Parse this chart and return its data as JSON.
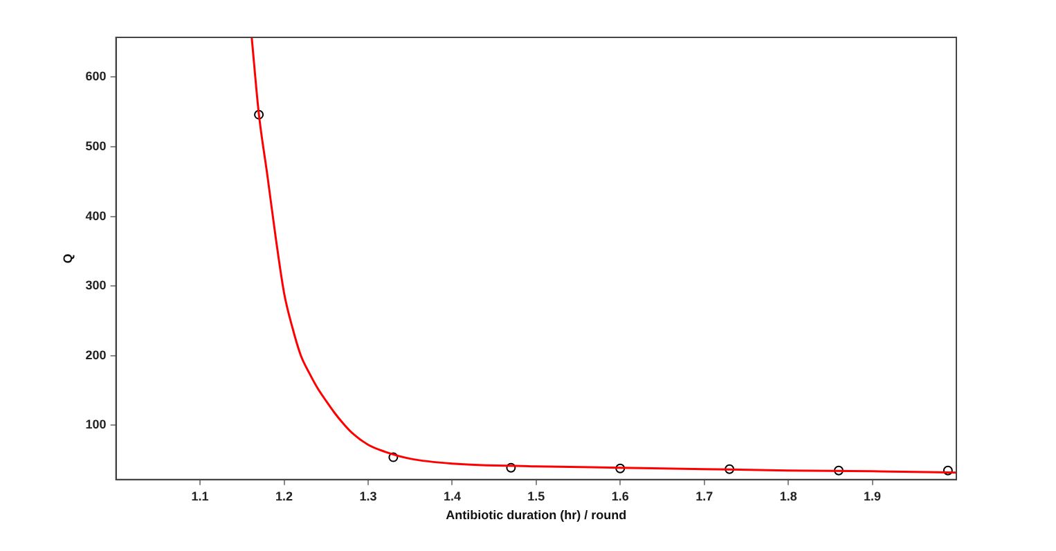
{
  "chart_data": {
    "type": "scatter",
    "xlabel": "Antibiotic duration (hr) / round",
    "ylabel": "Q",
    "xlim": [
      1.0,
      2.0
    ],
    "ylim": [
      22,
      657
    ],
    "xticks": [
      1.1,
      1.2,
      1.3,
      1.4,
      1.5,
      1.6,
      1.7,
      1.8,
      1.9
    ],
    "yticks": [
      100,
      200,
      300,
      400,
      500,
      600
    ],
    "grid": false,
    "series": [
      {
        "type": "line",
        "color": "#ff0000",
        "marker": "none",
        "x": [
          1.1615,
          1.17,
          1.18,
          1.19,
          1.2,
          1.21,
          1.22,
          1.23,
          1.24,
          1.25,
          1.26,
          1.27,
          1.28,
          1.3,
          1.32,
          1.35,
          1.4,
          1.5,
          1.6,
          1.7,
          1.8,
          1.9,
          2.0
        ],
        "values": [
          657,
          547,
          460,
          370,
          290,
          240,
          200,
          175,
          153,
          135,
          118,
          103,
          90,
          72,
          62,
          52,
          45,
          41,
          39,
          37,
          35,
          34,
          32
        ]
      },
      {
        "type": "scatter",
        "color": "#000000",
        "marker": "circle",
        "x": [
          1.17,
          1.33,
          1.47,
          1.6,
          1.73,
          1.86,
          1.99
        ],
        "values": [
          546,
          54,
          39,
          38,
          37,
          35,
          35
        ]
      }
    ]
  }
}
